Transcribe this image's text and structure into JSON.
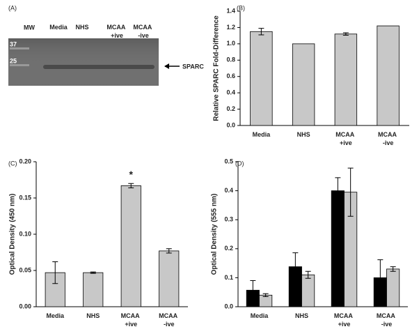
{
  "blot": {
    "label": "(A)",
    "marker_header": "MW",
    "lanes": [
      "Media",
      "NHS",
      "MCAA +ive",
      "MCAA -ive"
    ],
    "markers": [
      "37",
      "25"
    ],
    "band_label": "SPARC"
  },
  "chart_data": [
    {
      "type": "bar",
      "label": "(B)",
      "ylabel": "Relative SPARC Fold-Difference",
      "categories": [
        "Media",
        "NHS",
        "MCAA +ive",
        "MCAA -ive"
      ],
      "values": [
        1.15,
        1.0,
        1.12,
        1.22
      ],
      "errors": [
        0.04,
        null,
        0.015,
        null
      ],
      "color": "#c8c8c8",
      "ylim": [
        0,
        1.4
      ],
      "yticks": [
        {
          "value": 0,
          "label": "0.0"
        },
        {
          "value": 0.2,
          "label": "0.2"
        },
        {
          "value": 0.4,
          "label": "0.4"
        },
        {
          "value": 0.6,
          "label": "0.6"
        },
        {
          "value": 0.8,
          "label": "0.8"
        },
        {
          "value": 1,
          "label": "1.0"
        },
        {
          "value": 1.2,
          "label": "1.2"
        },
        {
          "value": 1.4,
          "label": "1.4"
        }
      ]
    },
    {
      "type": "bar",
      "label": "(C)",
      "ylabel": "Optical Density (450 nm)",
      "categories": [
        "Media",
        "NHS",
        "MCAA +ive",
        "MCAA -ive"
      ],
      "values": [
        0.047,
        0.047,
        0.167,
        0.077
      ],
      "errors": [
        0.015,
        0.001,
        0.003,
        0.003
      ],
      "color": "#c8c8c8",
      "annotations": [
        {
          "text": "*",
          "category": "MCAA +ive"
        }
      ],
      "ylim": [
        0,
        0.2
      ],
      "yticks": [
        {
          "value": 0,
          "label": "0.00"
        },
        {
          "value": 0.05,
          "label": "0.05"
        },
        {
          "value": 0.1,
          "label": "0.10"
        },
        {
          "value": 0.15,
          "label": "0.15"
        },
        {
          "value": 0.2,
          "label": "0.20"
        }
      ]
    },
    {
      "type": "grouped_bar",
      "label": "(D)",
      "ylabel": "Optical Density (555 nm)",
      "categories": [
        "Media",
        "NHS",
        "MCAA +ive",
        "MCAA -ive"
      ],
      "series": [
        {
          "color": "#000000",
          "values": [
            0.057,
            0.138,
            0.4,
            0.1
          ],
          "errors": [
            0.033,
            0.048,
            0.045,
            0.062
          ]
        },
        {
          "color": "#c8c8c8",
          "values": [
            0.04,
            0.11,
            0.395,
            0.13
          ],
          "errors": [
            0.005,
            0.012,
            0.083,
            0.008
          ]
        }
      ],
      "ylim": [
        0,
        0.5
      ],
      "yticks": [
        {
          "value": 0,
          "label": "0.0"
        },
        {
          "value": 0.1,
          "label": "0.1"
        },
        {
          "value": 0.2,
          "label": "0.2"
        },
        {
          "value": 0.3,
          "label": "0.3"
        },
        {
          "value": 0.4,
          "label": "0.4"
        },
        {
          "value": 0.5,
          "label": "0.5"
        }
      ]
    }
  ]
}
